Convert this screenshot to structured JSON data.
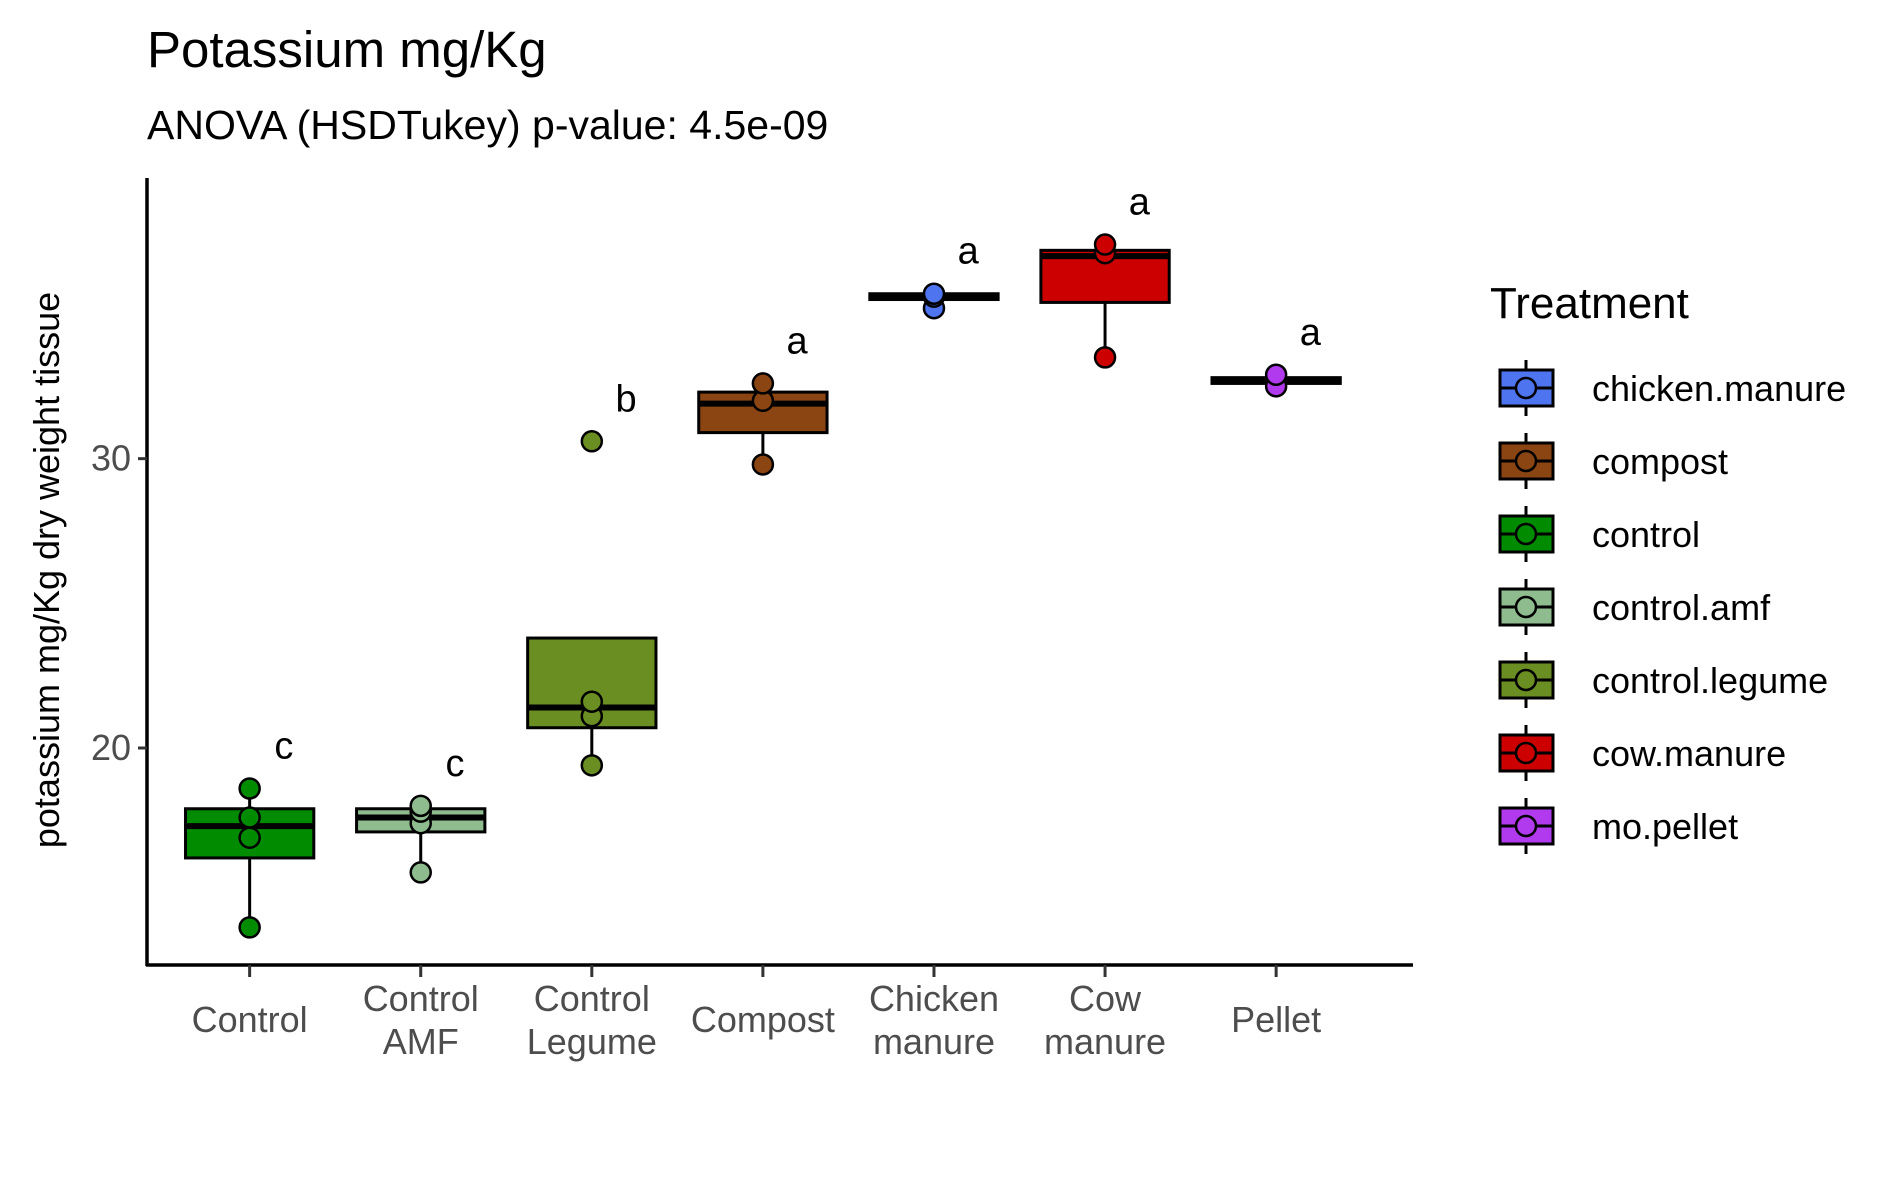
{
  "chart_data": {
    "type": "box",
    "title": "Potassium mg/Kg",
    "subtitle": "ANOVA (HSDTukey) p-value: 4.5e-09",
    "xlabel": "",
    "ylabel": "potassium mg/Kg dry weight tissue",
    "ylim": [
      12.5,
      39.7
    ],
    "yticks": [
      20,
      30
    ],
    "grid": false,
    "legend_position": "right",
    "legend_title": "Treatment",
    "categories": [
      {
        "label": [
          "Control"
        ],
        "treatment": "control",
        "color": "#008B00",
        "box": {
          "q1": 16.2,
          "median": 17.3,
          "q3": 17.9,
          "whisker_low": 13.8,
          "whisker_high": 18.6
        },
        "points": [
          13.8,
          16.9,
          17.6,
          18.6
        ],
        "sig": "c"
      },
      {
        "label": [
          "Control",
          "AMF"
        ],
        "treatment": "control.amf",
        "color": "#8FBC8F",
        "box": {
          "q1": 17.1,
          "median": 17.6,
          "q3": 17.9,
          "whisker_low": 15.7,
          "whisker_high": 17.9
        },
        "points": [
          15.7,
          17.4,
          17.8,
          18.0
        ],
        "sig": "c"
      },
      {
        "label": [
          "Control",
          "Legume"
        ],
        "treatment": "control.legume",
        "color": "#6B8E23",
        "box": {
          "q1": 20.7,
          "median": 21.4,
          "q3": 23.8,
          "whisker_low": 19.4,
          "whisker_high": 23.8
        },
        "points": [
          19.4,
          21.1,
          21.6,
          30.6
        ],
        "sig": "b"
      },
      {
        "label": [
          "Compost"
        ],
        "treatment": "compost",
        "color": "#8B4513",
        "box": {
          "q1": 30.9,
          "median": 31.9,
          "q3": 32.3,
          "whisker_low": 29.8,
          "whisker_high": 32.6
        },
        "points": [
          29.8,
          32.0,
          32.6
        ],
        "sig": "a"
      },
      {
        "label": [
          "Chicken",
          "manure"
        ],
        "treatment": "chicken.manure",
        "color": "#4F74F0",
        "box": {
          "q1": 35.5,
          "median": 35.6,
          "q3": 35.7,
          "whisker_low": 35.5,
          "whisker_high": 35.7
        },
        "points": [
          35.2,
          35.6,
          35.7
        ],
        "sig": "a"
      },
      {
        "label": [
          "Cow",
          "manure"
        ],
        "treatment": "cow.manure",
        "color": "#CD0000",
        "box": {
          "q1": 35.4,
          "median": 37.0,
          "q3": 37.2,
          "whisker_low": 33.5,
          "whisker_high": 37.2
        },
        "points": [
          33.5,
          37.1,
          37.4
        ],
        "sig": "a"
      },
      {
        "label": [
          "Pellet"
        ],
        "treatment": "mo.pellet",
        "color": "#B23AEE",
        "box": {
          "q1": 32.6,
          "median": 32.7,
          "q3": 32.8,
          "whisker_low": 32.6,
          "whisker_high": 32.8
        },
        "points": [
          32.5,
          32.9
        ],
        "sig": "a"
      }
    ],
    "legend": [
      {
        "name": "chicken.manure",
        "color": "#4F74F0"
      },
      {
        "name": "compost",
        "color": "#8B4513"
      },
      {
        "name": "control",
        "color": "#008B00"
      },
      {
        "name": "control.amf",
        "color": "#8FBC8F"
      },
      {
        "name": "control.legume",
        "color": "#6B8E23"
      },
      {
        "name": "cow.manure",
        "color": "#CD0000"
      },
      {
        "name": "mo.pellet",
        "color": "#B23AEE"
      }
    ]
  }
}
